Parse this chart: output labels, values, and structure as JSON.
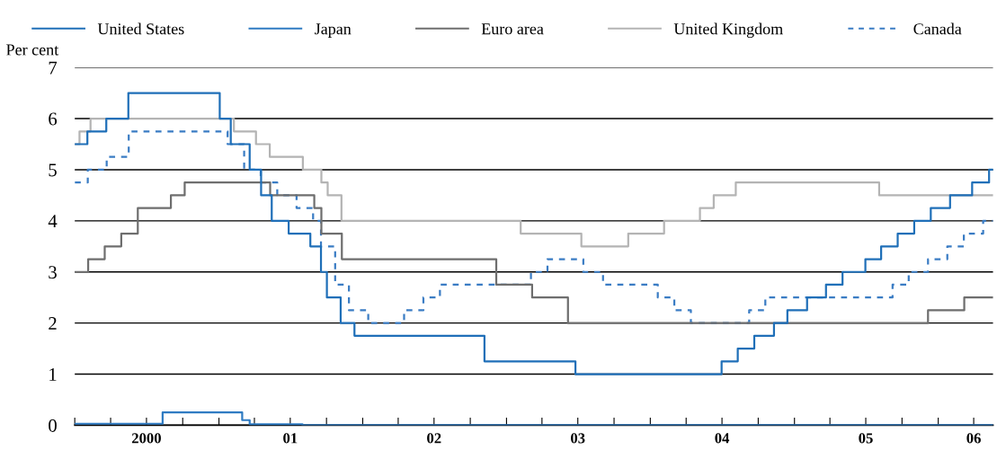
{
  "chart_data": {
    "type": "step",
    "ylabel": "Per cent",
    "legend": "top",
    "grid": "y",
    "xlim": [
      "2000-01-01",
      "2006-05-20"
    ],
    "ylim": [
      0,
      7
    ],
    "yticks": [
      0,
      1,
      2,
      3,
      4,
      5,
      6,
      7
    ],
    "xticks": [
      {
        "value": "2000-01-01",
        "label": null
      },
      {
        "value": "2000-04-01",
        "label": null
      },
      {
        "value": "2000-07-01",
        "label": "2000"
      },
      {
        "value": "2000-10-01",
        "label": null
      },
      {
        "value": "2001-01-01",
        "label": null
      },
      {
        "value": "2001-04-01",
        "label": null
      },
      {
        "value": "2001-07-01",
        "label": "01"
      },
      {
        "value": "2001-10-01",
        "label": null
      },
      {
        "value": "2002-01-01",
        "label": null
      },
      {
        "value": "2002-04-01",
        "label": null
      },
      {
        "value": "2002-07-01",
        "label": "02"
      },
      {
        "value": "2002-10-01",
        "label": null
      },
      {
        "value": "2003-01-01",
        "label": null
      },
      {
        "value": "2003-04-01",
        "label": null
      },
      {
        "value": "2003-07-01",
        "label": "03"
      },
      {
        "value": "2003-10-01",
        "label": null
      },
      {
        "value": "2004-01-01",
        "label": null
      },
      {
        "value": "2004-04-01",
        "label": null
      },
      {
        "value": "2004-07-01",
        "label": "04"
      },
      {
        "value": "2004-10-01",
        "label": null
      },
      {
        "value": "2005-01-01",
        "label": null
      },
      {
        "value": "2005-04-01",
        "label": null
      },
      {
        "value": "2005-07-01",
        "label": "05"
      },
      {
        "value": "2005-10-01",
        "label": null
      },
      {
        "value": "2006-01-01",
        "label": null
      },
      {
        "value": "2006-04-01",
        "label": "06"
      }
    ],
    "series": [
      {
        "name": "United States",
        "color": "#1f6fb8",
        "line_style": "solid",
        "x": [
          "2000-01-01",
          "2000-02-02",
          "2000-03-21",
          "2000-05-16",
          "2001-01-03",
          "2001-01-31",
          "2001-03-20",
          "2001-04-18",
          "2001-05-15",
          "2001-06-27",
          "2001-08-21",
          "2001-09-17",
          "2001-10-02",
          "2001-11-06",
          "2001-12-11",
          "2002-11-06",
          "2003-06-25",
          "2004-06-30",
          "2004-08-10",
          "2004-09-21",
          "2004-11-10",
          "2004-12-14",
          "2005-02-02",
          "2005-03-22",
          "2005-05-03",
          "2005-06-30",
          "2005-08-09",
          "2005-09-20",
          "2005-11-01",
          "2005-12-13",
          "2006-01-31",
          "2006-03-28",
          "2006-05-10",
          "2006-05-20"
        ],
        "values": [
          5.5,
          5.75,
          6,
          6.5,
          6,
          5.5,
          5,
          4.5,
          4,
          3.75,
          3.5,
          3,
          2.5,
          2,
          1.75,
          1.25,
          1,
          1.25,
          1.5,
          1.75,
          2,
          2.25,
          2.5,
          2.75,
          3,
          3.25,
          3.5,
          3.75,
          4,
          4.25,
          4.5,
          4.75,
          5,
          5
        ]
      },
      {
        "name": "Japan",
        "color": "#2f7bc2",
        "line_style": "solid",
        "x": [
          "2000-01-01",
          "2000-08-11",
          "2001-03-01",
          "2001-03-20",
          "2001-08-01",
          "2006-05-20"
        ],
        "values": [
          0.03,
          0.25,
          0.1,
          0.02,
          0,
          0
        ]
      },
      {
        "name": "Euro area",
        "color": "#6e6e6e",
        "line_style": "solid",
        "x": [
          "2000-01-01",
          "2000-02-04",
          "2000-03-17",
          "2000-04-28",
          "2000-06-09",
          "2000-09-01",
          "2000-10-06",
          "2001-05-11",
          "2001-08-31",
          "2001-09-18",
          "2001-11-09",
          "2002-12-06",
          "2003-03-07",
          "2003-06-06",
          "2005-12-06",
          "2006-03-08",
          "2006-05-20"
        ],
        "values": [
          3,
          3.25,
          3.5,
          3.75,
          4.25,
          4.5,
          4.75,
          4.5,
          4.25,
          3.75,
          3.25,
          2.75,
          2.5,
          2,
          2.25,
          2.5,
          2.5
        ]
      },
      {
        "name": "United Kingdom",
        "color": "#b4b4b4",
        "line_style": "solid",
        "x": [
          "2000-01-01",
          "2000-01-13",
          "2000-02-10",
          "2001-02-08",
          "2001-04-05",
          "2001-05-10",
          "2001-08-02",
          "2001-09-18",
          "2001-10-04",
          "2001-11-08",
          "2003-02-06",
          "2003-07-10",
          "2003-11-06",
          "2004-02-05",
          "2004-05-06",
          "2004-06-10",
          "2004-08-05",
          "2005-08-04",
          "2006-05-20"
        ],
        "values": [
          5.5,
          5.75,
          6,
          5.75,
          5.5,
          5.25,
          5,
          4.75,
          4.5,
          4,
          3.75,
          3.5,
          3.75,
          4,
          4.25,
          4.5,
          4.75,
          4.5,
          4.5
        ]
      },
      {
        "name": "Canada",
        "color": "#3a7cc4",
        "line_style": "dashed",
        "x": [
          "2000-01-01",
          "2000-02-03",
          "2000-03-22",
          "2000-05-17",
          "2001-01-23",
          "2001-03-06",
          "2001-04-17",
          "2001-05-29",
          "2001-07-17",
          "2001-08-28",
          "2001-09-17",
          "2001-10-23",
          "2001-11-27",
          "2002-01-15",
          "2002-04-16",
          "2002-06-04",
          "2002-07-16",
          "2003-03-04",
          "2003-04-15",
          "2003-07-15",
          "2003-09-03",
          "2004-01-20",
          "2004-03-02",
          "2004-04-13",
          "2004-09-08",
          "2004-10-19",
          "2005-09-07",
          "2005-10-18",
          "2005-12-06",
          "2006-01-24",
          "2006-03-07",
          "2006-04-25",
          "2006-05-20"
        ],
        "values": [
          4.75,
          5,
          5.25,
          5.75,
          5.5,
          5,
          4.75,
          4.5,
          4.25,
          4,
          3.5,
          2.75,
          2.25,
          2,
          2.25,
          2.5,
          2.75,
          3,
          3.25,
          3,
          2.75,
          2.5,
          2.25,
          2,
          2.25,
          2.5,
          2.75,
          3,
          3.25,
          3.5,
          3.75,
          4,
          4
        ]
      }
    ]
  }
}
